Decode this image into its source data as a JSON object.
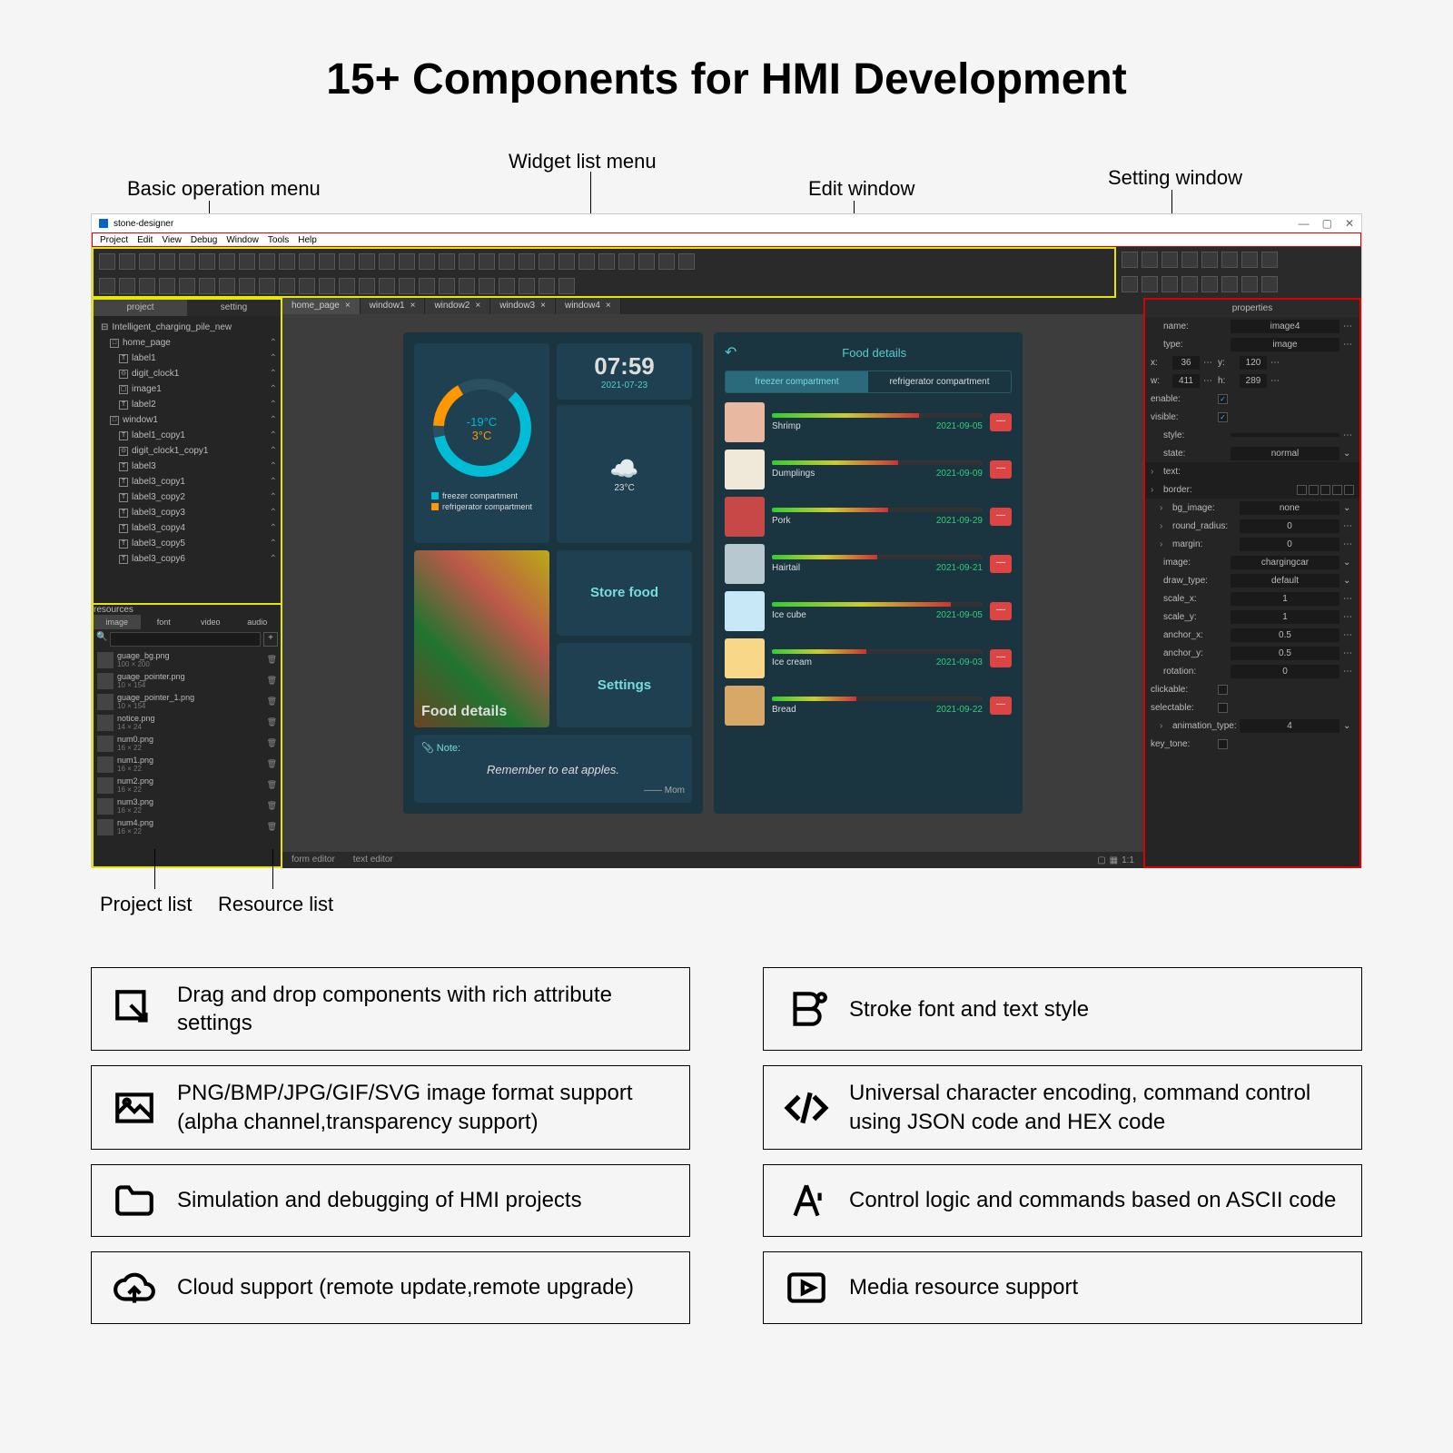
{
  "title": "15+ Components for HMI Development",
  "annotations": {
    "basic_menu": "Basic operation menu",
    "widget_menu": "Widget list menu",
    "edit_window": "Edit window",
    "setting_window": "Setting window",
    "project_list": "Project list",
    "resource_list": "Resource list"
  },
  "app": {
    "title": "stone-designer",
    "menubar": [
      "Project",
      "Edit",
      "View",
      "Debug",
      "Window",
      "Tools",
      "Help"
    ]
  },
  "project": {
    "header_tabs": [
      "project",
      "setting"
    ],
    "root": "Intelligent_charging_pile_new",
    "items": [
      {
        "name": "home_page",
        "depth": 1,
        "icon": "□"
      },
      {
        "name": "label1",
        "depth": 2,
        "icon": "T"
      },
      {
        "name": "digit_clock1",
        "depth": 2,
        "icon": "⊙"
      },
      {
        "name": "image1",
        "depth": 2,
        "icon": "▢"
      },
      {
        "name": "label2",
        "depth": 2,
        "icon": "T"
      },
      {
        "name": "window1",
        "depth": 1,
        "icon": "□"
      },
      {
        "name": "label1_copy1",
        "depth": 2,
        "icon": "T"
      },
      {
        "name": "digit_clock1_copy1",
        "depth": 2,
        "icon": "⊙"
      },
      {
        "name": "label3",
        "depth": 2,
        "icon": "T"
      },
      {
        "name": "label3_copy1",
        "depth": 2,
        "icon": "T"
      },
      {
        "name": "label3_copy2",
        "depth": 2,
        "icon": "T"
      },
      {
        "name": "label3_copy3",
        "depth": 2,
        "icon": "T"
      },
      {
        "name": "label3_copy4",
        "depth": 2,
        "icon": "T"
      },
      {
        "name": "label3_copy5",
        "depth": 2,
        "icon": "T"
      },
      {
        "name": "label3_copy6",
        "depth": 2,
        "icon": "T"
      }
    ]
  },
  "resources": {
    "header": "resources",
    "tabs": [
      "image",
      "font",
      "video",
      "audio"
    ],
    "items": [
      {
        "name": "guage_bg.png",
        "dim": "100 × 200"
      },
      {
        "name": "guage_pointer.png",
        "dim": "10 × 154"
      },
      {
        "name": "guage_pointer_1.png",
        "dim": "10 × 154"
      },
      {
        "name": "notice.png",
        "dim": "14 × 24"
      },
      {
        "name": "num0.png",
        "dim": "16 × 22"
      },
      {
        "name": "num1.png",
        "dim": "16 × 22"
      },
      {
        "name": "num2.png",
        "dim": "16 × 22"
      },
      {
        "name": "num3.png",
        "dim": "16 × 22"
      },
      {
        "name": "num4.png",
        "dim": "16 × 22"
      }
    ]
  },
  "tabs": [
    "home_page",
    "window1",
    "window2",
    "window3",
    "window4"
  ],
  "screen1": {
    "temp1": "-19°C",
    "temp2": "3°C",
    "legend1": "freezer compartment",
    "legend2": "refrigerator compartment",
    "legend1_color": "#00bcd4",
    "legend2_color": "#ff9800",
    "time": "07:59",
    "date": "2021-07-23",
    "weather_temp": "23°C",
    "food_btn": "Food details",
    "store_btn": "Store food",
    "settings_btn": "Settings",
    "note_hdr": "📎 Note:",
    "note_txt": "Remember to eat apples.",
    "note_sig": "—— Mom"
  },
  "screen2": {
    "title": "Food details",
    "tabs": [
      "freezer compartment",
      "refrigerator compartment"
    ],
    "foods": [
      {
        "name": "Shrimp",
        "date": "2021-09-05",
        "pct": 70,
        "thumb": "#e8b8a0"
      },
      {
        "name": "Dumplings",
        "date": "2021-09-09",
        "pct": 60,
        "thumb": "#f0e8d8"
      },
      {
        "name": "Pork",
        "date": "2021-09-29",
        "pct": 55,
        "thumb": "#c84848"
      },
      {
        "name": "Hairtail",
        "date": "2021-09-21",
        "pct": 50,
        "thumb": "#b8c8d0"
      },
      {
        "name": "Ice cube",
        "date": "2021-09-05",
        "pct": 85,
        "thumb": "#c8e8f8"
      },
      {
        "name": "Ice cream",
        "date": "2021-09-03",
        "pct": 45,
        "thumb": "#f8d888"
      },
      {
        "name": "Bread",
        "date": "2021-09-22",
        "pct": 40,
        "thumb": "#d8a868"
      }
    ]
  },
  "properties": {
    "header": "properties",
    "rows": [
      {
        "type": "text",
        "label": "name:",
        "value": "image4"
      },
      {
        "type": "text",
        "label": "type:",
        "value": "image"
      },
      {
        "type": "xy",
        "label": "x:",
        "value": "36",
        "label2": "y:",
        "value2": "120"
      },
      {
        "type": "xy",
        "label": "w:",
        "value": "411",
        "label2": "h:",
        "value2": "289"
      },
      {
        "type": "check",
        "label": "enable:",
        "checked": true
      },
      {
        "type": "check",
        "label": "visible:",
        "checked": true
      },
      {
        "type": "text",
        "label": "style:",
        "value": ""
      },
      {
        "type": "select",
        "label": "state:",
        "value": "normal"
      },
      {
        "type": "section",
        "label": "text:"
      },
      {
        "type": "border",
        "label": "border:"
      },
      {
        "type": "select",
        "label": "bg_image:",
        "value": "none",
        "indent": true
      },
      {
        "type": "text",
        "label": "round_radius:",
        "value": "0",
        "indent": true
      },
      {
        "type": "text",
        "label": "margin:",
        "value": "0",
        "indent": true
      },
      {
        "type": "select",
        "label": "image:",
        "value": "chargingcar"
      },
      {
        "type": "select",
        "label": "draw_type:",
        "value": "default"
      },
      {
        "type": "text",
        "label": "scale_x:",
        "value": "1"
      },
      {
        "type": "text",
        "label": "scale_y:",
        "value": "1"
      },
      {
        "type": "text",
        "label": "anchor_x:",
        "value": "0.5"
      },
      {
        "type": "text",
        "label": "anchor_y:",
        "value": "0.5"
      },
      {
        "type": "text",
        "label": "rotation:",
        "value": "0"
      },
      {
        "type": "check",
        "label": "clickable:",
        "checked": false
      },
      {
        "type": "check",
        "label": "selectable:",
        "checked": false
      },
      {
        "type": "select",
        "label": "animation_type:",
        "value": "4",
        "indent": true
      },
      {
        "type": "check",
        "label": "key_tone:",
        "checked": false
      }
    ]
  },
  "bottom_tabs": [
    "form editor",
    "text editor"
  ],
  "features": [
    {
      "icon": "cursor",
      "text": "Drag and drop components with rich attribute settings"
    },
    {
      "icon": "font",
      "text": "Stroke font and text style"
    },
    {
      "icon": "image",
      "text": "PNG/BMP/JPG/GIF/SVG image format support (alpha channel,transparency support)"
    },
    {
      "icon": "code",
      "text": "Universal character encoding, command control using JSON code and HEX code"
    },
    {
      "icon": "folder",
      "text": "Simulation and debugging of HMI projects"
    },
    {
      "icon": "ascii",
      "text": "Control logic and commands based on ASCII code"
    },
    {
      "icon": "cloud",
      "text": "Cloud support (remote update,remote upgrade)"
    },
    {
      "icon": "play",
      "text": "Media resource support"
    }
  ]
}
